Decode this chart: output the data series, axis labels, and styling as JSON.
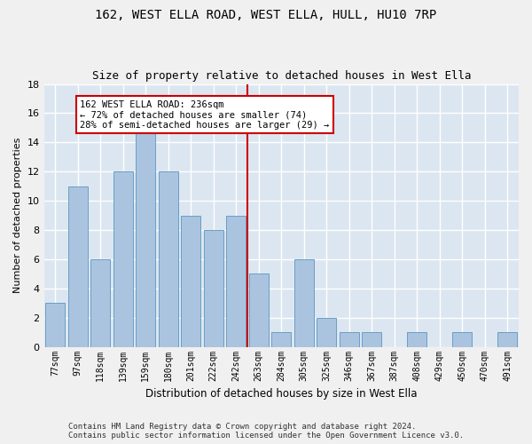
{
  "title": "162, WEST ELLA ROAD, WEST ELLA, HULL, HU10 7RP",
  "subtitle": "Size of property relative to detached houses in West Ella",
  "xlabel": "Distribution of detached houses by size in West Ella",
  "ylabel": "Number of detached properties",
  "categories": [
    "77sqm",
    "97sqm",
    "118sqm",
    "139sqm",
    "159sqm",
    "180sqm",
    "201sqm",
    "222sqm",
    "242sqm",
    "263sqm",
    "284sqm",
    "305sqm",
    "325sqm",
    "346sqm",
    "367sqm",
    "387sqm",
    "408sqm",
    "429sqm",
    "450sqm",
    "470sqm",
    "491sqm"
  ],
  "values": [
    3,
    11,
    6,
    12,
    15,
    12,
    9,
    8,
    9,
    5,
    1,
    6,
    2,
    1,
    1,
    0,
    1,
    0,
    1,
    0,
    1
  ],
  "bar_color": "#aac4e0",
  "bar_edge_color": "#6a9ec5",
  "vline_index": 8,
  "vline_color": "#cc0000",
  "annotation_text": "162 WEST ELLA ROAD: 236sqm\n← 72% of detached houses are smaller (74)\n28% of semi-detached houses are larger (29) →",
  "annotation_box_color": "#ffffff",
  "annotation_box_edge_color": "#cc0000",
  "ylim": [
    0,
    18
  ],
  "yticks": [
    0,
    2,
    4,
    6,
    8,
    10,
    12,
    14,
    16,
    18
  ],
  "background_color": "#dce6f0",
  "fig_background_color": "#f0f0f0",
  "grid_color": "#ffffff",
  "footer_line1": "Contains HM Land Registry data © Crown copyright and database right 2024.",
  "footer_line2": "Contains public sector information licensed under the Open Government Licence v3.0.",
  "title_fontsize": 10,
  "subtitle_fontsize": 9,
  "xlabel_fontsize": 8.5,
  "ylabel_fontsize": 8,
  "tick_fontsize": 7,
  "annot_fontsize": 7.5,
  "footer_fontsize": 6.5
}
